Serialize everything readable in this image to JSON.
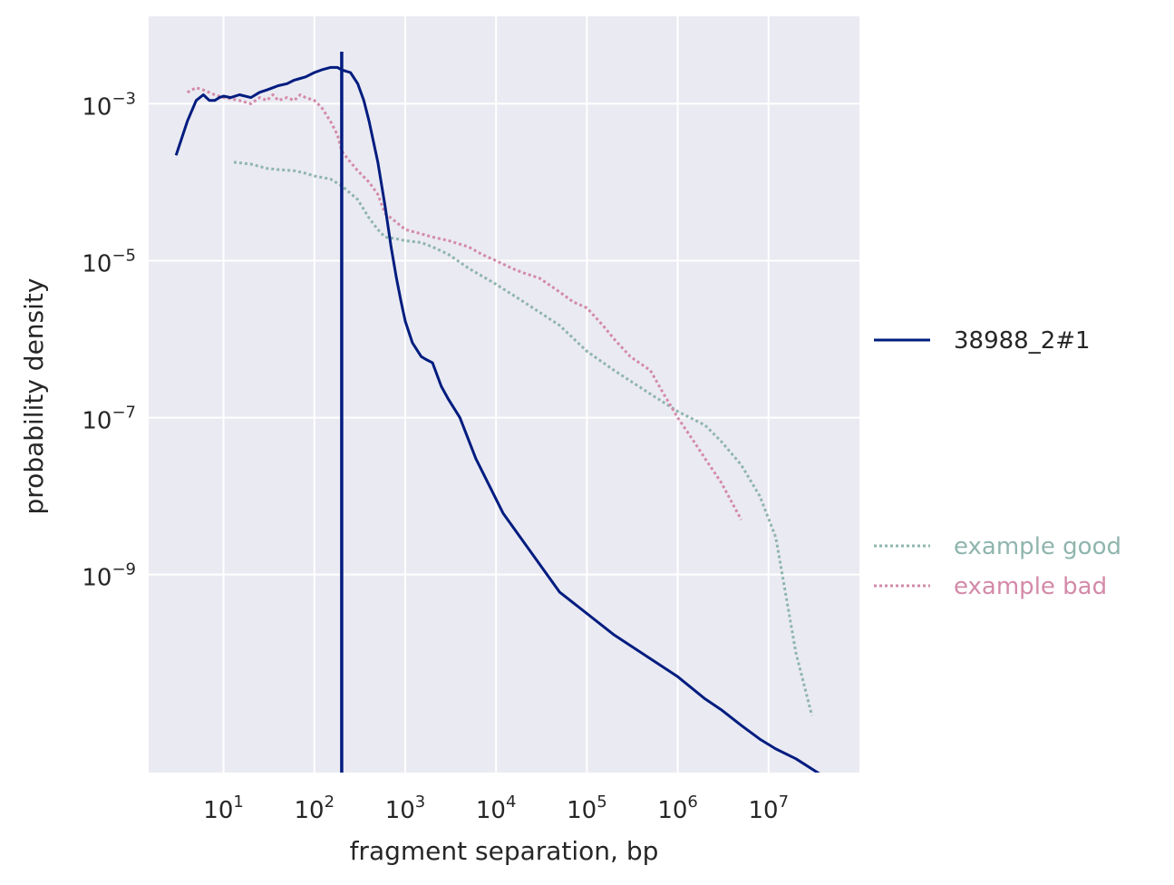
{
  "colors": {
    "background": "#eaeaf2",
    "grid": "#ffffff",
    "sample": "#001c7f",
    "good": "#8fb5ad",
    "bad": "#d38aa8"
  },
  "chart_data": {
    "type": "line",
    "title": "",
    "xlabel": "fragment separation, bp",
    "ylabel": "probability density",
    "xscale": "log",
    "yscale": "log",
    "xlim": [
      1.5,
      100000000.0
    ],
    "ylim": [
      3e-12,
      0.013
    ],
    "grid": true,
    "x_ticks": [
      {
        "value": 10,
        "base": "10",
        "exp": "1"
      },
      {
        "value": 100,
        "base": "10",
        "exp": "2"
      },
      {
        "value": 1000,
        "base": "10",
        "exp": "3"
      },
      {
        "value": 10000,
        "base": "10",
        "exp": "4"
      },
      {
        "value": 100000,
        "base": "10",
        "exp": "5"
      },
      {
        "value": 1000000,
        "base": "10",
        "exp": "6"
      },
      {
        "value": 10000000,
        "base": "10",
        "exp": "7"
      }
    ],
    "y_ticks": [
      {
        "value": 0.001,
        "base": "10",
        "exp": "−3"
      },
      {
        "value": 1e-05,
        "base": "10",
        "exp": "−5"
      },
      {
        "value": 1e-07,
        "base": "10",
        "exp": "−7"
      },
      {
        "value": 1e-09,
        "base": "10",
        "exp": "−9"
      }
    ],
    "vline": {
      "x": 200,
      "color": "#001c7f"
    },
    "legend": {
      "placement": "right"
    },
    "series": [
      {
        "name": "38988_2#1",
        "style": "solid",
        "color": "#001c7f",
        "x": [
          3,
          4,
          5,
          6,
          7,
          8,
          9,
          10,
          12,
          15,
          20,
          25,
          30,
          35,
          40,
          50,
          60,
          70,
          80,
          100,
          120,
          150,
          180,
          200,
          250,
          300,
          350,
          400,
          500,
          600,
          700,
          800,
          900,
          1000,
          1200,
          1500,
          1700,
          2000,
          2500,
          3000,
          4000,
          6000,
          12000,
          50000,
          200000,
          1000000,
          2000000,
          3000000,
          5000000,
          8000000,
          12000000,
          20000000,
          40000000
        ],
        "y": [
          0.00022,
          0.0006,
          0.0011,
          0.0013,
          0.0011,
          0.0011,
          0.0012,
          0.00125,
          0.0012,
          0.0013,
          0.0012,
          0.0014,
          0.0015,
          0.0016,
          0.0017,
          0.0018,
          0.002,
          0.0021,
          0.0022,
          0.0025,
          0.0027,
          0.0029,
          0.0029,
          0.0027,
          0.0025,
          0.0018,
          0.0011,
          0.0006,
          0.00018,
          5e-05,
          1.5e-05,
          6e-06,
          3e-06,
          1.7e-06,
          9e-07,
          6e-07,
          5.5e-07,
          5e-07,
          2.5e-07,
          1.7e-07,
          1e-07,
          3e-08,
          6e-09,
          6e-10,
          1.7e-10,
          5e-11,
          2.6e-11,
          1.9e-11,
          1.2e-11,
          8e-12,
          6e-12,
          4.5e-12,
          2.7e-12
        ]
      },
      {
        "name": "example good",
        "style": "dotted",
        "color": "#8fb5ad",
        "x": [
          13,
          20,
          30,
          40,
          60,
          80,
          100,
          150,
          200,
          300,
          400,
          500,
          600,
          800,
          1000,
          1500,
          2000,
          3000,
          5000,
          10000,
          20000,
          50000,
          100000,
          200000,
          500000,
          1000000,
          2000000,
          3000000,
          5000000,
          8000000,
          12000000,
          20000000,
          30000000
        ],
        "y": [
          0.00018,
          0.00017,
          0.00015,
          0.000145,
          0.00014,
          0.00013,
          0.00012,
          0.00011,
          9e-05,
          6e-05,
          3.5e-05,
          2.5e-05,
          2e-05,
          1.9e-05,
          1.8e-05,
          1.7e-05,
          1.5e-05,
          1.2e-05,
          8e-06,
          5e-06,
          3e-06,
          1.5e-06,
          7e-07,
          4e-07,
          2e-07,
          1.2e-07,
          8e-08,
          5e-08,
          2.5e-08,
          1e-08,
          3e-09,
          1e-10,
          1.6e-11
        ]
      },
      {
        "name": "example bad",
        "style": "dotted",
        "color": "#d38aa8",
        "x": [
          4,
          5,
          6,
          8,
          10,
          15,
          20,
          25,
          30,
          35,
          40,
          50,
          60,
          70,
          80,
          100,
          120,
          150,
          180,
          200,
          250,
          300,
          400,
          500,
          600,
          700,
          1000,
          1500,
          2000,
          3000,
          5000,
          7000,
          10000,
          15000,
          20000,
          30000,
          50000,
          70000,
          100000,
          150000,
          200000,
          300000,
          500000,
          700000,
          1000000,
          1500000,
          2000000,
          3000000,
          5000000
        ],
        "y": [
          0.0014,
          0.0016,
          0.0015,
          0.0013,
          0.0012,
          0.0011,
          0.001,
          0.0012,
          0.0011,
          0.0013,
          0.0011,
          0.0012,
          0.0011,
          0.0013,
          0.0012,
          0.0011,
          0.0009,
          0.0006,
          0.0004,
          0.00025,
          0.00018,
          0.00014,
          0.0001,
          7e-05,
          4e-05,
          3.5e-05,
          2.5e-05,
          2.2e-05,
          2e-05,
          1.8e-05,
          1.5e-05,
          1.2e-05,
          1e-05,
          8e-06,
          7e-06,
          6e-06,
          4e-06,
          3e-06,
          2.5e-06,
          1.5e-06,
          1e-06,
          6e-07,
          4e-07,
          2e-07,
          1e-07,
          5e-08,
          3e-08,
          1.5e-08,
          5e-09
        ]
      }
    ]
  }
}
